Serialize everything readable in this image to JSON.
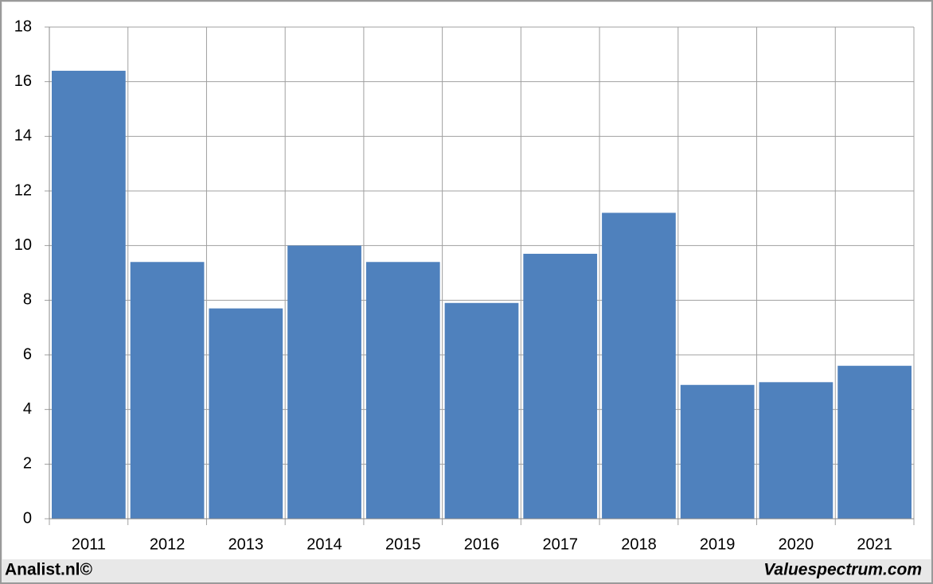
{
  "chart_data": {
    "type": "bar",
    "categories": [
      "2011",
      "2012",
      "2013",
      "2014",
      "2015",
      "2016",
      "2017",
      "2018",
      "2019",
      "2020",
      "2021"
    ],
    "values": [
      16.4,
      9.4,
      7.7,
      10.0,
      9.4,
      7.9,
      9.7,
      11.2,
      4.9,
      5.0,
      5.6
    ],
    "color": "#4f81bd",
    "ylim": [
      0,
      18
    ],
    "yticks": [
      0,
      2,
      4,
      6,
      8,
      10,
      12,
      14,
      16,
      18
    ],
    "grid": true,
    "source_left": "Analist.nl©",
    "source_right": "Valuespectrum.com"
  }
}
